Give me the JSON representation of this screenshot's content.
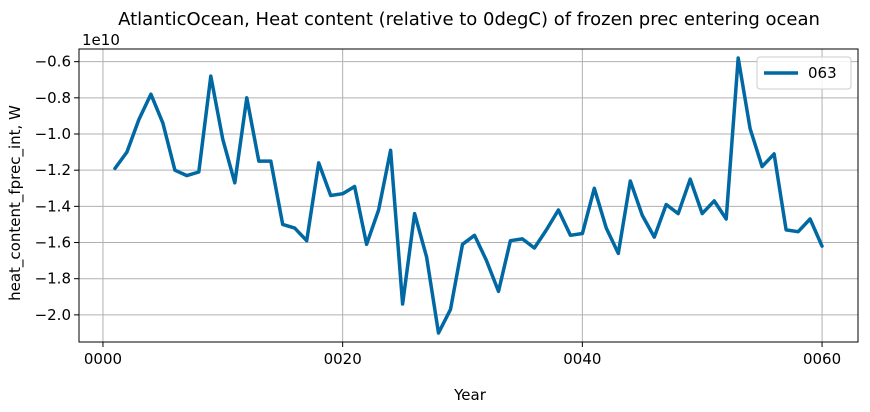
{
  "chart_data": {
    "type": "line",
    "title": "AtlanticOcean, Heat content (relative to 0degC) of frozen prec entering ocean",
    "xlabel": "Year",
    "ylabel": "heat_content_fprec_int, W",
    "y_offset_label": "1e10",
    "xlim": [
      -2,
      63
    ],
    "ylim": [
      -2.15,
      -0.53
    ],
    "x_ticks": [
      0,
      20,
      40,
      60
    ],
    "x_tick_labels": [
      "0000",
      "0020",
      "0040",
      "0060"
    ],
    "y_ticks": [
      -2.0,
      -1.8,
      -1.6,
      -1.4,
      -1.2,
      -1.0,
      -0.8,
      -0.6
    ],
    "y_tick_labels": [
      "−2.0",
      "−1.8",
      "−1.6",
      "−1.4",
      "−1.2",
      "−1.0",
      "−0.8",
      "−0.6"
    ],
    "grid": true,
    "legend_position": "top-right",
    "x": [
      1,
      2,
      3,
      4,
      5,
      6,
      7,
      8,
      9,
      10,
      11,
      12,
      13,
      14,
      15,
      16,
      17,
      18,
      19,
      20,
      21,
      22,
      23,
      24,
      25,
      26,
      27,
      28,
      29,
      30,
      31,
      32,
      33,
      34,
      35,
      36,
      37,
      38,
      39,
      40,
      41,
      42,
      43,
      44,
      45,
      46,
      47,
      48,
      49,
      50,
      51,
      52,
      53,
      54,
      55,
      56,
      57,
      58,
      59,
      60
    ],
    "series": [
      {
        "name": "063",
        "color": "#0068a3",
        "values": [
          -1.19,
          -1.1,
          -0.92,
          -0.78,
          -0.94,
          -1.2,
          -1.23,
          -1.21,
          -0.68,
          -1.03,
          -1.27,
          -0.8,
          -1.15,
          -1.15,
          -1.5,
          -1.52,
          -1.59,
          -1.16,
          -1.34,
          -1.33,
          -1.29,
          -1.61,
          -1.42,
          -1.09,
          -1.94,
          -1.44,
          -1.68,
          -2.1,
          -1.97,
          -1.61,
          -1.56,
          -1.7,
          -1.87,
          -1.59,
          -1.58,
          -1.63,
          -1.53,
          -1.42,
          -1.56,
          -1.55,
          -1.3,
          -1.52,
          -1.66,
          -1.26,
          -1.45,
          -1.57,
          -1.39,
          -1.44,
          -1.25,
          -1.44,
          -1.37,
          -1.47,
          -0.58,
          -0.97,
          -1.18,
          -1.11,
          -1.53,
          -1.54,
          -1.47,
          -1.62
        ]
      }
    ]
  }
}
